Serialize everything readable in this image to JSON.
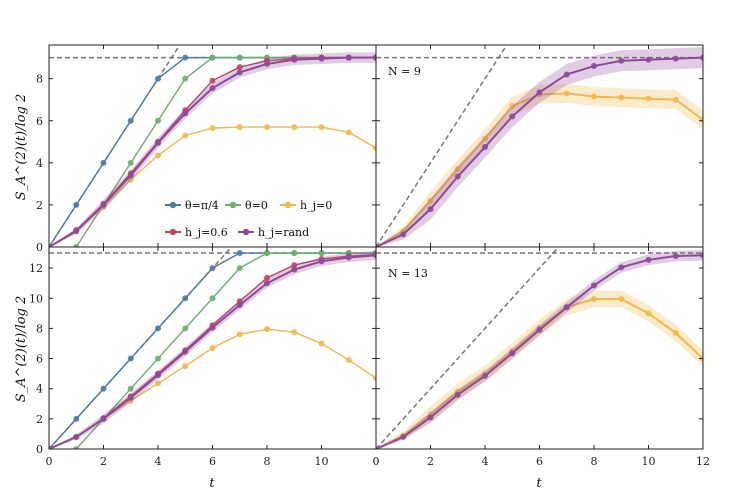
{
  "chart_data": [
    {
      "type": "line",
      "panel": "top-left",
      "xlim": [
        0,
        12
      ],
      "ylim": [
        0,
        9.6
      ],
      "yticks": [
        0,
        2,
        4,
        6,
        8
      ],
      "ylabel": "S_A^(2)(t)/log 2",
      "xlabel": "",
      "hline": 9,
      "dashed_slope_line": {
        "slope": 2,
        "color": "#777777"
      },
      "series": [
        {
          "name": "θ=π/4",
          "color": "#4a7aa6",
          "x": [
            0,
            1,
            2,
            3,
            4,
            5,
            6,
            7,
            8,
            9,
            10,
            11,
            12
          ],
          "y": [
            0,
            2,
            4,
            6,
            8,
            9,
            9,
            9,
            9,
            9,
            9,
            9,
            9
          ]
        },
        {
          "name": "θ=0",
          "color": "#6ab06a",
          "x": [
            1,
            2,
            3,
            4,
            5,
            6,
            7,
            8,
            9,
            10,
            11,
            12
          ],
          "y": [
            0,
            2,
            4,
            6,
            8,
            9,
            9,
            9,
            9,
            9,
            9,
            9
          ]
        },
        {
          "name": "h_j=0",
          "color": "#f2b84b",
          "x": [
            0,
            1,
            2,
            3,
            4,
            5,
            6,
            7,
            8,
            9,
            10,
            11,
            12
          ],
          "y": [
            0,
            0.8,
            1.9,
            3.2,
            4.35,
            5.3,
            5.65,
            5.7,
            5.7,
            5.7,
            5.7,
            5.45,
            4.7
          ]
        },
        {
          "name": "h_j=0.6",
          "color": "#c9435a",
          "x": [
            0,
            1,
            2,
            3,
            4,
            5,
            6,
            7,
            8,
            9,
            10,
            11,
            12
          ],
          "y": [
            0,
            0.8,
            2.05,
            3.5,
            5.0,
            6.5,
            7.9,
            8.55,
            8.85,
            8.95,
            9.0,
            9.0,
            9.0
          ]
        },
        {
          "name": "h_j=rand",
          "color": "#8e4a9a",
          "band": 0.25,
          "x": [
            0,
            1,
            2,
            3,
            4,
            5,
            6,
            7,
            8,
            9,
            10,
            11,
            12
          ],
          "y": [
            0,
            0.75,
            2.0,
            3.4,
            4.95,
            6.35,
            7.55,
            8.3,
            8.7,
            8.9,
            8.95,
            9.0,
            9.0
          ]
        }
      ]
    },
    {
      "type": "line",
      "panel": "top-right",
      "annotation": "N = 9",
      "xlim": [
        0,
        12
      ],
      "ylim": [
        0,
        9.6
      ],
      "hline": 9,
      "dashed_slope_line": {
        "slope": 2,
        "color": "#777777"
      },
      "series": [
        {
          "name": "h_j=0",
          "color": "#f2b84b",
          "band": 0.45,
          "x": [
            0,
            1,
            2,
            3,
            4,
            5,
            6,
            7,
            8,
            9,
            10,
            11,
            12
          ],
          "y": [
            0,
            0.75,
            2.2,
            3.7,
            5.15,
            6.7,
            7.25,
            7.3,
            7.15,
            7.1,
            7.05,
            7.0,
            6.05
          ]
        },
        {
          "name": "h_j=rand",
          "color": "#8e4a9a",
          "band": 0.5,
          "x": [
            0,
            1,
            2,
            3,
            4,
            5,
            6,
            7,
            8,
            9,
            10,
            11,
            12
          ],
          "y": [
            0,
            0.6,
            1.8,
            3.35,
            4.75,
            6.2,
            7.35,
            8.2,
            8.6,
            8.85,
            8.9,
            8.95,
            9.0
          ]
        }
      ]
    },
    {
      "type": "line",
      "panel": "bottom-left",
      "xlim": [
        0,
        12
      ],
      "ylim": [
        0,
        13.4
      ],
      "yticks": [
        0,
        2,
        4,
        6,
        8,
        10,
        12
      ],
      "xticks": [
        0,
        2,
        4,
        6,
        8,
        10
      ],
      "ylabel": "S_A^(2)(t)/log 2",
      "xlabel": "t",
      "hline": 13,
      "dashed_slope_line": {
        "slope": 2,
        "color": "#777777"
      },
      "series": [
        {
          "name": "θ=π/4",
          "color": "#4a7aa6",
          "x": [
            0,
            1,
            2,
            3,
            4,
            5,
            6,
            7,
            8,
            9,
            10,
            11,
            12
          ],
          "y": [
            0,
            2,
            4,
            6,
            8,
            10,
            12,
            13,
            13,
            13,
            13,
            13,
            13
          ]
        },
        {
          "name": "θ=0",
          "color": "#6ab06a",
          "x": [
            1,
            2,
            3,
            4,
            5,
            6,
            7,
            8,
            9,
            10,
            11,
            12
          ],
          "y": [
            0,
            2,
            4,
            6,
            8,
            10,
            12,
            13,
            13,
            13,
            13,
            13
          ]
        },
        {
          "name": "h_j=0",
          "color": "#f2b84b",
          "x": [
            0,
            1,
            2,
            3,
            4,
            5,
            6,
            7,
            8,
            9,
            10,
            11,
            12
          ],
          "y": [
            0,
            0.8,
            2.0,
            3.2,
            4.35,
            5.5,
            6.7,
            7.6,
            7.95,
            7.75,
            7.0,
            5.9,
            4.7
          ]
        },
        {
          "name": "h_j=0.6",
          "color": "#c9435a",
          "x": [
            0,
            1,
            2,
            3,
            4,
            5,
            6,
            7,
            8,
            9,
            10,
            11,
            12
          ],
          "y": [
            0,
            0.8,
            2.05,
            3.5,
            5.0,
            6.55,
            8.2,
            9.8,
            11.35,
            12.2,
            12.6,
            12.8,
            12.9
          ]
        },
        {
          "name": "h_j=rand",
          "color": "#8e4a9a",
          "band": 0.3,
          "x": [
            0,
            1,
            2,
            3,
            4,
            5,
            6,
            7,
            8,
            9,
            10,
            11,
            12
          ],
          "y": [
            0,
            0.8,
            2.0,
            3.4,
            4.9,
            6.45,
            8.05,
            9.55,
            11.0,
            11.9,
            12.45,
            12.7,
            12.85
          ]
        }
      ]
    },
    {
      "type": "line",
      "panel": "bottom-right",
      "annotation": "N = 13",
      "xlim": [
        0,
        12
      ],
      "ylim": [
        0,
        13.4
      ],
      "xticks": [
        0,
        2,
        4,
        6,
        8,
        10,
        12
      ],
      "xlabel": "t",
      "hline": 13,
      "dashed_slope_line": {
        "slope": 2,
        "color": "#777777"
      },
      "series": [
        {
          "name": "h_j=0",
          "color": "#f2b84b",
          "band": 0.55,
          "x": [
            0,
            1,
            2,
            3,
            4,
            5,
            6,
            7,
            8,
            9,
            10,
            11,
            12
          ],
          "y": [
            0,
            0.9,
            2.3,
            3.8,
            5.0,
            6.5,
            8.05,
            9.4,
            9.95,
            9.95,
            9.0,
            7.7,
            6.0
          ]
        },
        {
          "name": "h_j=rand",
          "color": "#8e4a9a",
          "band": 0.35,
          "x": [
            0,
            1,
            2,
            3,
            4,
            5,
            6,
            7,
            8,
            9,
            10,
            11,
            12
          ],
          "y": [
            0,
            0.8,
            2.1,
            3.6,
            4.85,
            6.35,
            7.9,
            9.4,
            10.85,
            12.05,
            12.55,
            12.8,
            12.85
          ]
        }
      ]
    }
  ],
  "legend": {
    "placement": "center-left of top-left panel",
    "entries": [
      {
        "label": "θ=π/4",
        "color": "#4a7aa6"
      },
      {
        "label": "θ=0",
        "color": "#6ab06a"
      },
      {
        "label": "h_j=0",
        "color": "#f2b84b"
      },
      {
        "label": "h_j=0.6",
        "color": "#c9435a"
      },
      {
        "label": "h_j=rand",
        "color": "#8e4a9a"
      }
    ]
  },
  "labels": {
    "ylabel_top": "S_A^(2)(t)/log 2",
    "ylabel_bottom": "S_A^(2)(t)/log 2",
    "xlabel_left": "t",
    "xlabel_right": "t",
    "ann_top": "N = 9",
    "ann_bottom": "N = 13"
  }
}
